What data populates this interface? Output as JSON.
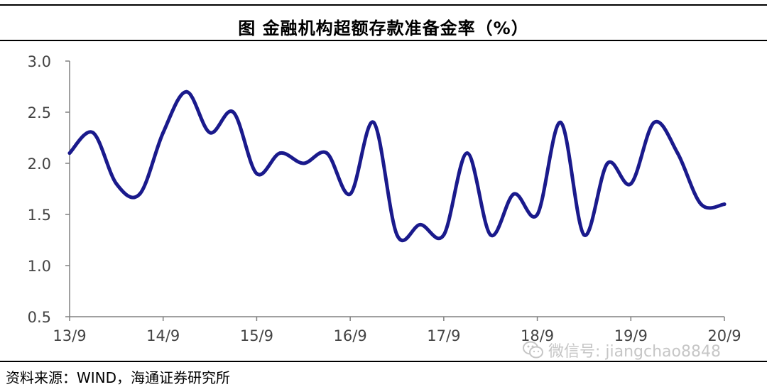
{
  "title": "图  金融机构超额存款准备金率（%）",
  "source": "资料来源：WIND，海通证券研究所",
  "watermark": {
    "text": "微信号: jiangchao8848",
    "icon": "wechat-icon"
  },
  "colors": {
    "line": "#1a1a8c",
    "axis": "#808080",
    "text": "#444444"
  },
  "chart_data": {
    "type": "line",
    "title": "金融机构超额存款准备金率（%）",
    "xlabel": "",
    "ylabel": "",
    "ylim": [
      0.5,
      3.0
    ],
    "yticks": [
      "3.0",
      "2.5",
      "2.0",
      "1.5",
      "1.0",
      "0.5"
    ],
    "xticks": [
      "13/9",
      "14/9",
      "15/9",
      "16/9",
      "17/9",
      "18/9",
      "19/9",
      "20/9"
    ],
    "grid": false,
    "legend": "none",
    "series": [
      {
        "x": [
          "2013-09",
          "2013-12",
          "2014-03",
          "2014-06",
          "2014-09",
          "2014-12",
          "2015-03",
          "2015-06",
          "2015-09",
          "2015-12",
          "2016-03",
          "2016-06",
          "2016-09",
          "2016-12",
          "2017-03",
          "2017-06",
          "2017-09",
          "2017-12",
          "2018-03",
          "2018-06",
          "2018-09",
          "2018-12",
          "2019-03",
          "2019-06",
          "2019-09",
          "2019-12",
          "2020-03",
          "2020-06",
          "2020-09"
        ],
        "values": [
          2.1,
          2.3,
          1.8,
          1.7,
          2.3,
          2.7,
          2.3,
          2.5,
          1.9,
          2.1,
          2.0,
          2.1,
          1.7,
          2.4,
          1.3,
          1.4,
          1.3,
          2.1,
          1.3,
          1.7,
          1.5,
          2.4,
          1.3,
          2.0,
          1.8,
          2.4,
          2.1,
          1.6,
          1.6
        ]
      }
    ]
  }
}
